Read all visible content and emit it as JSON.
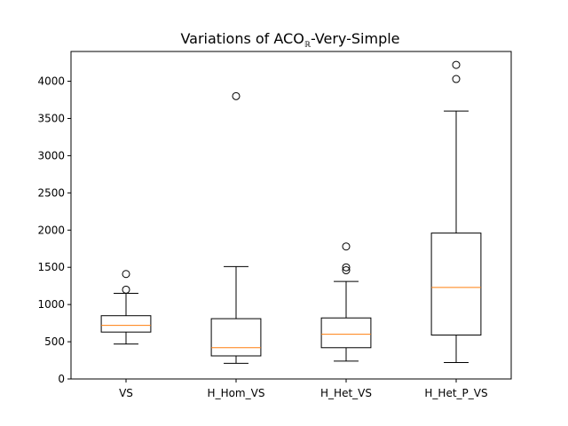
{
  "chart_data": {
    "type": "box",
    "title_main": "Variations of ACO",
    "title_sub": "ℝ",
    "title_rest": "-Very-Simple",
    "xlabel": "",
    "ylabel": "",
    "ylim": [
      0,
      4400
    ],
    "yticks": [
      0,
      500,
      1000,
      1500,
      2000,
      2500,
      3000,
      3500,
      4000
    ],
    "ytick_labels": [
      "0",
      "500",
      "1000",
      "1500",
      "2000",
      "2500",
      "3000",
      "3500",
      "4000"
    ],
    "grid": false,
    "legend": "none",
    "colors": {
      "box": "#000000",
      "median": "#ff7f0e",
      "flier": "#000000"
    },
    "categories": [
      "VS",
      "H_Hom_VS",
      "H_Het_VS",
      "H_Het_P_VS"
    ],
    "boxes": [
      {
        "category": "VS",
        "whisker_low": 470,
        "q1": 630,
        "median": 720,
        "q3": 850,
        "whisker_high": 1150,
        "fliers": [
          1200,
          1410
        ]
      },
      {
        "category": "H_Hom_VS",
        "whisker_low": 210,
        "q1": 310,
        "median": 420,
        "q3": 810,
        "whisker_high": 1510,
        "fliers": [
          3800
        ]
      },
      {
        "category": "H_Het_VS",
        "whisker_low": 240,
        "q1": 420,
        "median": 600,
        "q3": 820,
        "whisker_high": 1310,
        "fliers": [
          1460,
          1500,
          1780
        ]
      },
      {
        "category": "H_Het_P_VS",
        "whisker_low": 220,
        "q1": 590,
        "median": 1230,
        "q3": 1960,
        "whisker_high": 3600,
        "fliers": [
          4030,
          4220
        ]
      }
    ]
  }
}
